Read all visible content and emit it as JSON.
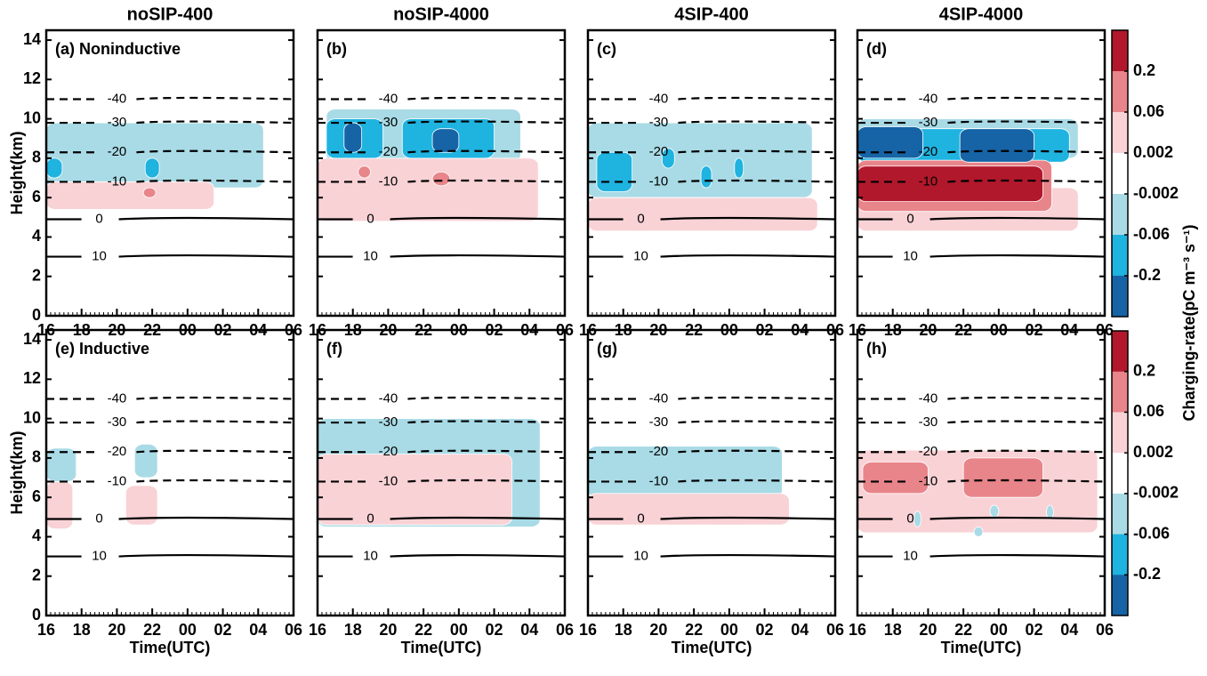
{
  "chart_data": [
    {
      "type": "contour",
      "title": "noSIP-400",
      "panel_label": "(a) Noninductive",
      "ylabel": "Height(km)",
      "xlim": [
        16,
        30
      ],
      "ylim": [
        0,
        14.5
      ],
      "xticks": [
        16,
        18,
        20,
        22,
        {
          "value": 24,
          "label": "00"
        },
        {
          "value": 26,
          "label": "02"
        },
        {
          "value": 28,
          "label": "04"
        },
        {
          "value": 30,
          "label": "06"
        }
      ],
      "yticks": [
        0,
        2,
        4,
        6,
        8,
        10,
        12,
        14
      ]
    },
    {
      "type": "contour",
      "title": "noSIP-4000",
      "panel_label": "(b)",
      "xlim": [
        16,
        30
      ],
      "ylim": [
        0,
        14.5
      ],
      "xticks": [
        16,
        18,
        20,
        22,
        {
          "value": 24,
          "label": "00"
        },
        {
          "value": 26,
          "label": "02"
        },
        {
          "value": 28,
          "label": "04"
        },
        {
          "value": 30,
          "label": "06"
        }
      ],
      "yticks": [
        0,
        2,
        4,
        6,
        8,
        10,
        12,
        14
      ]
    },
    {
      "type": "contour",
      "title": "4SIP-400",
      "panel_label": "(c)",
      "xlim": [
        16,
        30
      ],
      "ylim": [
        0,
        14.5
      ],
      "xticks": [
        16,
        18,
        20,
        22,
        {
          "value": 24,
          "label": "00"
        },
        {
          "value": 26,
          "label": "02"
        },
        {
          "value": 28,
          "label": "04"
        },
        {
          "value": 30,
          "label": "06"
        }
      ],
      "yticks": [
        0,
        2,
        4,
        6,
        8,
        10,
        12,
        14
      ]
    },
    {
      "type": "contour",
      "title": "4SIP-4000",
      "panel_label": "(d)",
      "xlim": [
        16,
        30
      ],
      "ylim": [
        0,
        14.5
      ],
      "xticks": [
        16,
        18,
        20,
        22,
        {
          "value": 24,
          "label": "00"
        },
        {
          "value": 26,
          "label": "02"
        },
        {
          "value": 28,
          "label": "04"
        },
        {
          "value": 30,
          "label": "06"
        }
      ],
      "yticks": [
        0,
        2,
        4,
        6,
        8,
        10,
        12,
        14
      ]
    },
    {
      "type": "contour",
      "panel_label": "(e) Inductive",
      "ylabel": "Height(km)",
      "xlabel": "Time(UTC)",
      "xlim": [
        16,
        30
      ],
      "ylim": [
        0,
        14.5
      ],
      "xticks": [
        16,
        18,
        20,
        22,
        {
          "value": 24,
          "label": "00"
        },
        {
          "value": 26,
          "label": "02"
        },
        {
          "value": 28,
          "label": "04"
        },
        {
          "value": 30,
          "label": "06"
        }
      ],
      "yticks": [
        0,
        2,
        4,
        6,
        8,
        10,
        12,
        14
      ]
    },
    {
      "type": "contour",
      "panel_label": "(f)",
      "xlabel": "Time(UTC)",
      "xlim": [
        16,
        30
      ],
      "ylim": [
        0,
        14.5
      ],
      "xticks": [
        16,
        18,
        20,
        22,
        {
          "value": 24,
          "label": "00"
        },
        {
          "value": 26,
          "label": "02"
        },
        {
          "value": 28,
          "label": "04"
        },
        {
          "value": 30,
          "label": "06"
        }
      ],
      "yticks": [
        0,
        2,
        4,
        6,
        8,
        10,
        12,
        14
      ]
    },
    {
      "type": "contour",
      "panel_label": "(g)",
      "xlabel": "Time(UTC)",
      "xlim": [
        16,
        30
      ],
      "ylim": [
        0,
        14.5
      ],
      "xticks": [
        16,
        18,
        20,
        22,
        {
          "value": 24,
          "label": "00"
        },
        {
          "value": 26,
          "label": "02"
        },
        {
          "value": 28,
          "label": "04"
        },
        {
          "value": 30,
          "label": "06"
        }
      ],
      "yticks": [
        0,
        2,
        4,
        6,
        8,
        10,
        12,
        14
      ]
    },
    {
      "type": "contour",
      "panel_label": "(h)",
      "xlabel": "Time(UTC)",
      "xlim": [
        16,
        30
      ],
      "ylim": [
        0,
        14.5
      ],
      "xticks": [
        16,
        18,
        20,
        22,
        {
          "value": 24,
          "label": "00"
        },
        {
          "value": 26,
          "label": "02"
        },
        {
          "value": 28,
          "label": "04"
        },
        {
          "value": 30,
          "label": "06"
        }
      ],
      "yticks": [
        0,
        2,
        4,
        6,
        8,
        10,
        12,
        14
      ]
    }
  ],
  "isotherms": [
    {
      "label": -40,
      "height": 11.0,
      "style": "dashed"
    },
    {
      "label": -30,
      "height": 9.8,
      "style": "dashed"
    },
    {
      "label": -20,
      "height": 8.3,
      "style": "dashed"
    },
    {
      "label": -10,
      "height": 6.8,
      "style": "dashed"
    },
    {
      "label": 0,
      "height": 4.9,
      "style": "solid"
    },
    {
      "label": 10,
      "height": 3.0,
      "style": "solid"
    }
  ],
  "colorbar": {
    "label": "Charging-rate(pC m⁻³ s⁻¹)",
    "ticks": [
      0.2,
      0.06,
      0.002,
      -0.002,
      -0.06,
      -0.2
    ],
    "colors": [
      "#b2182b",
      "#e8858a",
      "#f9d2d6",
      "#ffffff",
      "#a9dbe6",
      "#1fb3e0",
      "#1664a6"
    ]
  }
}
